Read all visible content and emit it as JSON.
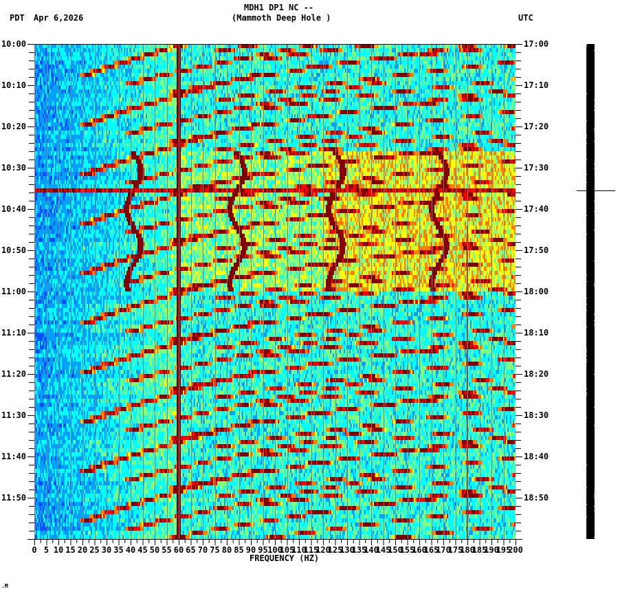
{
  "header": {
    "left_tz": "PDT",
    "date": "Apr 6,2026",
    "station": "MDH1 DP1 NC --",
    "site": "(Mammoth Deep Hole )",
    "right_tz": "UTC"
  },
  "footer_mark": ".M",
  "chart_data": {
    "type": "heatmap",
    "title": "MDH1 DP1 NC -- (Mammoth Deep Hole )",
    "xlabel": "FREQUENCY (HZ)",
    "ylabel_left": "PDT",
    "ylabel_right": "UTC",
    "xlim": [
      0,
      200
    ],
    "x_ticks": [
      0,
      5,
      10,
      15,
      20,
      25,
      30,
      35,
      40,
      45,
      50,
      55,
      60,
      65,
      70,
      75,
      80,
      85,
      90,
      95,
      100,
      105,
      110,
      115,
      120,
      125,
      130,
      135,
      140,
      145,
      150,
      155,
      160,
      165,
      170,
      175,
      180,
      185,
      190,
      195,
      200
    ],
    "y_ticks_left": [
      "10:00",
      "10:10",
      "10:20",
      "10:30",
      "10:40",
      "10:50",
      "11:00",
      "11:10",
      "11:20",
      "11:30",
      "11:40",
      "11:50"
    ],
    "y_ticks_right": [
      "17:00",
      "17:10",
      "17:20",
      "17:30",
      "17:40",
      "17:50",
      "18:00",
      "18:10",
      "18:20",
      "18:30",
      "18:40",
      "18:50"
    ],
    "time_range_minutes": 120,
    "grid": {
      "vertical_every_hz": 5,
      "color": "#808080"
    },
    "colormap": [
      "#0050ff",
      "#00a0ff",
      "#00ffff",
      "#80ff80",
      "#ffff00",
      "#ff8000",
      "#ff0000",
      "#800000"
    ],
    "features": {
      "constant_lines_hz": [
        60,
        180
      ],
      "constant_line_180_start_min": 44,
      "horizontal_band_min": 35.3,
      "elevated_band_min": [
        26,
        59
      ],
      "elevated_band_hz": [
        120,
        200
      ],
      "sweep_start_minutes": [
        -5,
        7,
        19,
        31,
        43,
        55,
        67,
        79,
        91,
        103,
        115
      ],
      "wandering_tracks": [
        {
          "hz_center": 41,
          "min": [
            26,
            59
          ]
        },
        {
          "hz_center": 84,
          "min": [
            26,
            59
          ]
        },
        {
          "hz_center": 125,
          "min": [
            26,
            59
          ]
        },
        {
          "hz_center": 168,
          "min": [
            26,
            59
          ]
        }
      ]
    }
  }
}
